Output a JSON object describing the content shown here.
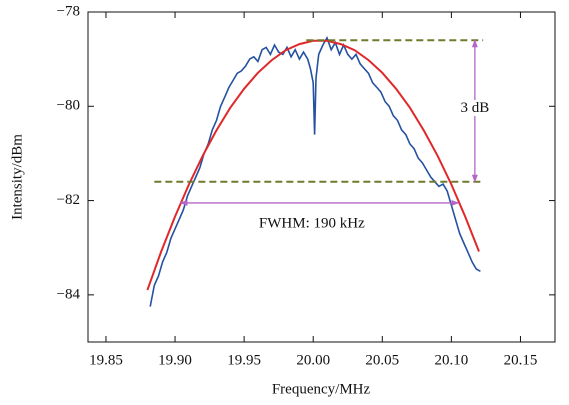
{
  "chart_data": {
    "type": "line",
    "x_label": "Frequency/MHz",
    "y_label": "Intensity/dBm",
    "xlim": [
      19.837,
      20.175
    ],
    "ylim": [
      -85,
      -78
    ],
    "xticks": [
      19.85,
      {
        "value": 19.9,
        "label": "19.90"
      },
      19.95,
      {
        "value": 20.0,
        "label": "20.00"
      },
      20.05,
      {
        "value": 20.1,
        "label": "20.10"
      },
      20.15
    ],
    "yticks": [
      {
        "value": -84,
        "label": "−84"
      },
      {
        "value": -82,
        "label": "−82"
      },
      {
        "value": -80,
        "label": "−80"
      },
      {
        "value": -78,
        "label": "−78"
      }
    ],
    "series": [
      {
        "color": "#2452a0",
        "x": [
          19.882,
          19.885,
          19.888,
          19.891,
          19.894,
          19.897,
          19.9,
          19.903,
          19.906,
          19.909,
          19.912,
          19.915,
          19.918,
          19.921,
          19.924,
          19.927,
          19.93,
          19.933,
          19.936,
          19.939,
          19.942,
          19.945,
          19.948,
          19.951,
          19.954,
          19.957,
          19.96,
          19.963,
          19.966,
          19.969,
          19.972,
          19.975,
          19.978,
          19.981,
          19.984,
          19.987,
          19.99,
          19.993,
          19.996,
          19.998,
          20.0,
          20.001,
          20.002,
          20.004,
          20.007,
          20.01,
          20.013,
          20.016,
          20.019,
          20.022,
          20.025,
          20.028,
          20.031,
          20.034,
          20.037,
          20.04,
          20.043,
          20.046,
          20.049,
          20.052,
          20.055,
          20.058,
          20.061,
          20.064,
          20.067,
          20.07,
          20.073,
          20.076,
          20.079,
          20.082,
          20.085,
          20.088,
          20.091,
          20.094,
          20.097,
          20.1,
          20.103,
          20.106,
          20.109,
          20.112,
          20.115,
          20.118,
          20.121
        ],
        "values": [
          -84.25,
          -83.8,
          -83.6,
          -83.3,
          -83.1,
          -82.8,
          -82.6,
          -82.4,
          -82.2,
          -81.9,
          -81.7,
          -81.5,
          -81.3,
          -81.0,
          -80.8,
          -80.5,
          -80.3,
          -80.0,
          -79.8,
          -79.6,
          -79.45,
          -79.3,
          -79.25,
          -79.15,
          -79.0,
          -78.95,
          -79.05,
          -78.8,
          -78.75,
          -78.9,
          -78.7,
          -78.85,
          -78.9,
          -78.75,
          -78.95,
          -78.8,
          -79.0,
          -78.85,
          -79.0,
          -79.2,
          -79.5,
          -80.6,
          -79.4,
          -78.9,
          -78.7,
          -78.55,
          -78.8,
          -78.65,
          -78.9,
          -78.7,
          -78.9,
          -79.0,
          -78.9,
          -79.1,
          -79.2,
          -79.3,
          -79.5,
          -79.6,
          -79.7,
          -79.9,
          -80.0,
          -80.2,
          -80.3,
          -80.5,
          -80.6,
          -80.8,
          -80.9,
          -81.1,
          -81.2,
          -81.35,
          -81.5,
          -81.6,
          -81.7,
          -81.65,
          -81.8,
          -82.1,
          -82.4,
          -82.7,
          -82.9,
          -83.1,
          -83.3,
          -83.45,
          -83.5
        ]
      },
      {
        "color": "#e0282a",
        "x": [
          19.88,
          19.89,
          19.9,
          19.91,
          19.92,
          19.93,
          19.94,
          19.95,
          19.96,
          19.97,
          19.98,
          19.99,
          20.0,
          20.01,
          20.02,
          20.03,
          20.04,
          20.05,
          20.06,
          20.07,
          20.08,
          20.09,
          20.1,
          20.11,
          20.12
        ],
        "values": [
          -83.9,
          -83.08,
          -82.34,
          -81.66,
          -81.05,
          -80.51,
          -80.03,
          -79.63,
          -79.29,
          -79.02,
          -78.81,
          -78.68,
          -78.61,
          -78.61,
          -78.68,
          -78.81,
          -79.02,
          -79.29,
          -79.63,
          -80.03,
          -80.51,
          -81.05,
          -81.66,
          -82.34,
          -83.08
        ]
      }
    ],
    "reference_lines": {
      "color": "#6f7a2c",
      "lines": [
        {
          "x": [
            19.995,
            20.123
          ],
          "y": -78.6
        },
        {
          "x": [
            19.885,
            20.123
          ],
          "y": -81.6
        }
      ]
    },
    "arrows": {
      "color": "#b366c8",
      "items": [
        {
          "x": [
            20.117,
            20.117
          ],
          "y": [
            -78.6,
            -81.6
          ]
        },
        {
          "x": [
            19.904,
            20.105
          ],
          "y": [
            -82.05,
            -82.05
          ]
        }
      ]
    },
    "annotations": [
      {
        "text": "3 dB",
        "x": 20.117,
        "y": -80.05
      },
      {
        "text": "FWHM: 190 kHz",
        "x": 19.999,
        "y": -82.5
      }
    ]
  }
}
